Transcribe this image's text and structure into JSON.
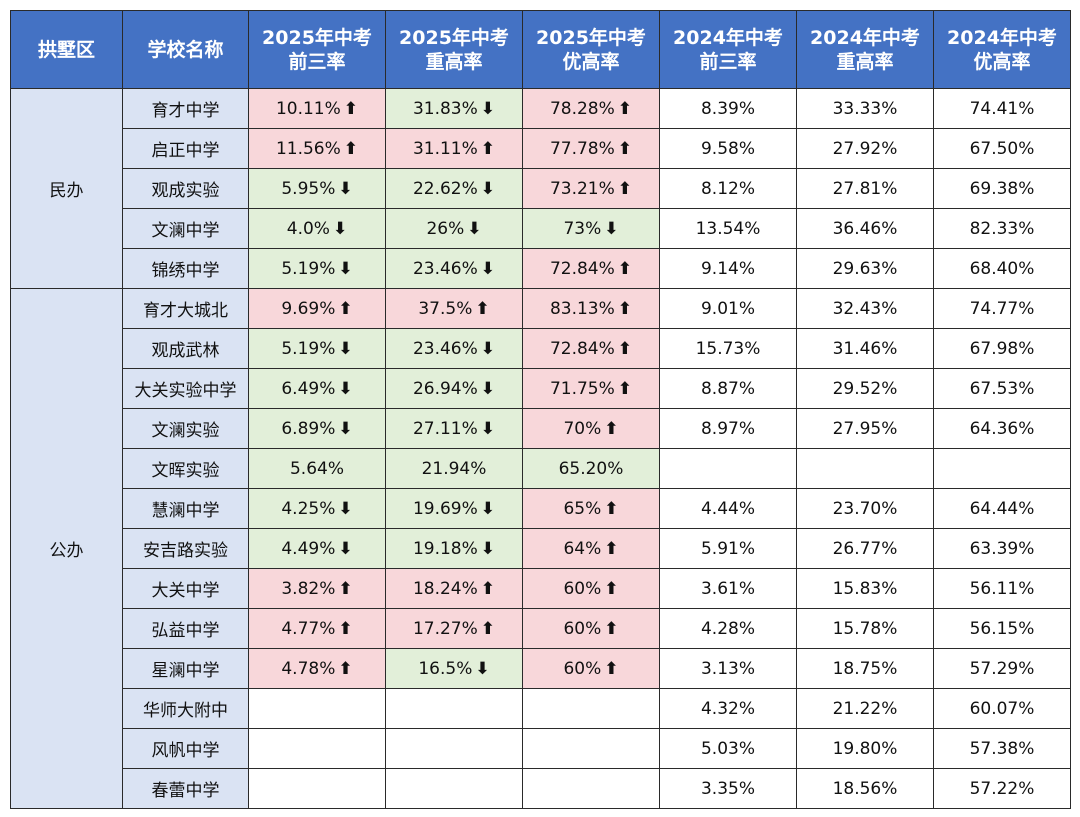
{
  "headers": [
    {
      "lines": [
        "拱墅区"
      ]
    },
    {
      "lines": [
        "学校名称"
      ]
    },
    {
      "lines": [
        "2025年中考",
        "前三率"
      ]
    },
    {
      "lines": [
        "2025年中考",
        "重高率"
      ]
    },
    {
      "lines": [
        "2025年中考",
        "优高率"
      ]
    },
    {
      "lines": [
        "2024年中考",
        "前三率"
      ]
    },
    {
      "lines": [
        "2024年中考",
        "重高率"
      ]
    },
    {
      "lines": [
        "2024年中考",
        "优高率"
      ]
    }
  ],
  "groups": [
    {
      "name": "民办",
      "rows": [
        {
          "school": "育才中学",
          "y2025": [
            {
              "v": "10.11%",
              "t": "up"
            },
            {
              "v": "31.83%",
              "t": "down"
            },
            {
              "v": "78.28%",
              "t": "up"
            }
          ],
          "y2024": [
            "8.39%",
            "33.33%",
            "74.41%"
          ]
        },
        {
          "school": "启正中学",
          "y2025": [
            {
              "v": "11.56%",
              "t": "up"
            },
            {
              "v": "31.11%",
              "t": "up"
            },
            {
              "v": "77.78%",
              "t": "up"
            }
          ],
          "y2024": [
            "9.58%",
            "27.92%",
            "67.50%"
          ]
        },
        {
          "school": "观成实验",
          "y2025": [
            {
              "v": "5.95%",
              "t": "down"
            },
            {
              "v": "22.62%",
              "t": "down"
            },
            {
              "v": "73.21%",
              "t": "up"
            }
          ],
          "y2024": [
            "8.12%",
            "27.81%",
            "69.38%"
          ]
        },
        {
          "school": "文澜中学",
          "y2025": [
            {
              "v": "4.0%",
              "t": "down"
            },
            {
              "v": "26%",
              "t": "down"
            },
            {
              "v": "73%",
              "t": "down"
            }
          ],
          "y2024": [
            "13.54%",
            "36.46%",
            "82.33%"
          ]
        },
        {
          "school": "锦绣中学",
          "y2025": [
            {
              "v": "5.19%",
              "t": "down"
            },
            {
              "v": "23.46%",
              "t": "down"
            },
            {
              "v": "72.84%",
              "t": "up"
            }
          ],
          "y2024": [
            "9.14%",
            "29.63%",
            "68.40%"
          ]
        }
      ]
    },
    {
      "name": "公办",
      "rows": [
        {
          "school": "育才大城北",
          "y2025": [
            {
              "v": "9.69%",
              "t": "up"
            },
            {
              "v": "37.5%",
              "t": "up"
            },
            {
              "v": "83.13%",
              "t": "up"
            }
          ],
          "y2024": [
            "9.01%",
            "32.43%",
            "74.77%"
          ]
        },
        {
          "school": "观成武林",
          "y2025": [
            {
              "v": "5.19%",
              "t": "down"
            },
            {
              "v": "23.46%",
              "t": "down"
            },
            {
              "v": "72.84%",
              "t": "up"
            }
          ],
          "y2024": [
            "15.73%",
            "31.46%",
            "67.98%"
          ]
        },
        {
          "school": "大关实验中学",
          "y2025": [
            {
              "v": "6.49%",
              "t": "down"
            },
            {
              "v": "26.94%",
              "t": "down"
            },
            {
              "v": "71.75%",
              "t": "up"
            }
          ],
          "y2024": [
            "8.87%",
            "29.52%",
            "67.53%"
          ]
        },
        {
          "school": "文澜实验",
          "y2025": [
            {
              "v": "6.89%",
              "t": "down"
            },
            {
              "v": "27.11%",
              "t": "down"
            },
            {
              "v": "70%",
              "t": "up"
            }
          ],
          "y2024": [
            "8.97%",
            "27.95%",
            "64.36%"
          ]
        },
        {
          "school": "文晖实验",
          "y2025": [
            {
              "v": "5.64%",
              "t": "flat"
            },
            {
              "v": "21.94%",
              "t": "flat"
            },
            {
              "v": "65.20%",
              "t": "flat"
            }
          ],
          "y2024": [
            "",
            "",
            ""
          ]
        },
        {
          "school": "慧澜中学",
          "y2025": [
            {
              "v": "4.25%",
              "t": "down"
            },
            {
              "v": "19.69%",
              "t": "down"
            },
            {
              "v": "65%",
              "t": "up"
            }
          ],
          "y2024": [
            "4.44%",
            "23.70%",
            "64.44%"
          ]
        },
        {
          "school": "安吉路实验",
          "y2025": [
            {
              "v": "4.49%",
              "t": "down"
            },
            {
              "v": "19.18%",
              "t": "down"
            },
            {
              "v": "64%",
              "t": "up"
            }
          ],
          "y2024": [
            "5.91%",
            "26.77%",
            "63.39%"
          ]
        },
        {
          "school": "大关中学",
          "y2025": [
            {
              "v": "3.82%",
              "t": "up"
            },
            {
              "v": "18.24%",
              "t": "up"
            },
            {
              "v": "60%",
              "t": "up"
            }
          ],
          "y2024": [
            "3.61%",
            "15.83%",
            "56.11%"
          ]
        },
        {
          "school": "弘益中学",
          "y2025": [
            {
              "v": "4.77%",
              "t": "up"
            },
            {
              "v": "17.27%",
              "t": "up"
            },
            {
              "v": "60%",
              "t": "up"
            }
          ],
          "y2024": [
            "4.28%",
            "15.78%",
            "56.15%"
          ]
        },
        {
          "school": "星澜中学",
          "y2025": [
            {
              "v": "4.78%",
              "t": "up"
            },
            {
              "v": "16.5%",
              "t": "down"
            },
            {
              "v": "60%",
              "t": "up"
            }
          ],
          "y2024": [
            "3.13%",
            "18.75%",
            "57.29%"
          ]
        },
        {
          "school": "华师大附中",
          "y2025": [
            {
              "v": "",
              "t": "none"
            },
            {
              "v": "",
              "t": "none"
            },
            {
              "v": "",
              "t": "none"
            }
          ],
          "y2024": [
            "4.32%",
            "21.22%",
            "60.07%"
          ]
        },
        {
          "school": "风帆中学",
          "y2025": [
            {
              "v": "",
              "t": "none"
            },
            {
              "v": "",
              "t": "none"
            },
            {
              "v": "",
              "t": "none"
            }
          ],
          "y2024": [
            "5.03%",
            "19.80%",
            "57.38%"
          ]
        },
        {
          "school": "春蕾中学",
          "y2025": [
            {
              "v": "",
              "t": "none"
            },
            {
              "v": "",
              "t": "none"
            },
            {
              "v": "",
              "t": "none"
            }
          ],
          "y2024": [
            "3.35%",
            "18.56%",
            "57.22%"
          ]
        }
      ]
    }
  ],
  "arrows": {
    "up": "⬆",
    "down": "⬇"
  },
  "colors": {
    "header": "#4472c4",
    "label_cell": "#dae3f3",
    "increase": "#f8d7da",
    "decrease": "#e2efd9"
  }
}
